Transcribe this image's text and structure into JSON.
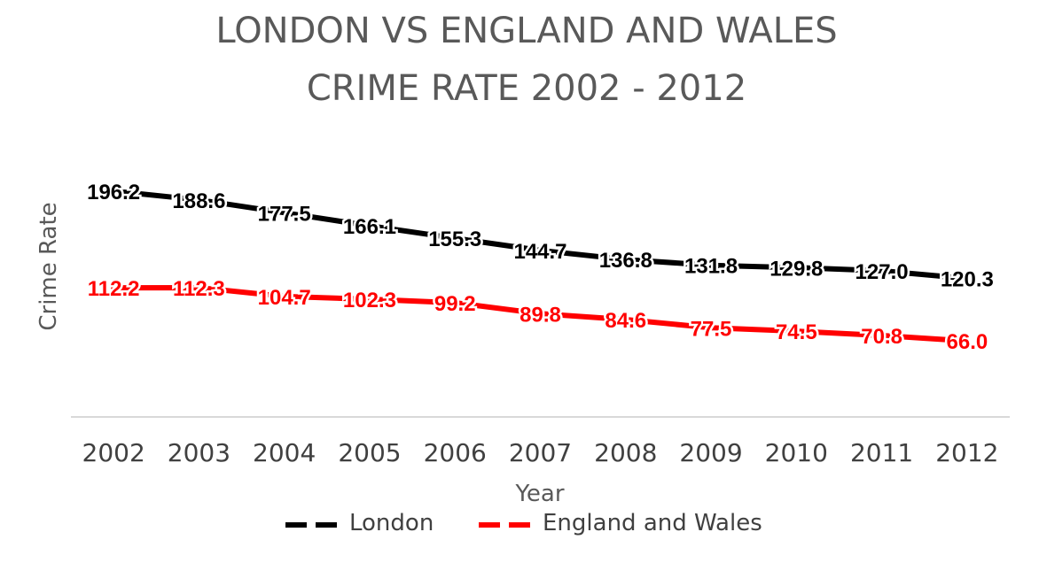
{
  "chart_data": {
    "type": "line",
    "title_lines": [
      "LONDON VS ENGLAND AND WALES",
      "CRIME RATE 2002 - 2012"
    ],
    "xlabel": "Year",
    "ylabel": "Crime Rate",
    "categories": [
      "2002",
      "2003",
      "2004",
      "2005",
      "2006",
      "2007",
      "2008",
      "2009",
      "2010",
      "2011",
      "2012"
    ],
    "ylim": [
      0,
      250
    ],
    "grid": false,
    "legend": "bottom",
    "series": [
      {
        "name": "London",
        "color": "#000000",
        "values": [
          196.2,
          188.6,
          177.5,
          166.1,
          155.3,
          144.7,
          136.8,
          131.8,
          129.8,
          127.0,
          120.3
        ],
        "labels": [
          "196.2",
          "188.6",
          "177.5",
          "166.1",
          "155.3",
          "144.7",
          "136.8",
          "131.8",
          "129.8",
          "127.0",
          "120.3"
        ]
      },
      {
        "name": "England and Wales",
        "color": "#ff0000",
        "values": [
          112.2,
          112.3,
          104.7,
          102.3,
          99.2,
          89.8,
          84.6,
          77.5,
          74.5,
          70.8,
          66.0
        ],
        "labels": [
          "112.2",
          "112.3",
          "104.7",
          "102.3",
          "99.2",
          "89.8",
          "84.6",
          "77.5",
          "74.5",
          "70.8",
          "66.0"
        ]
      }
    ]
  }
}
